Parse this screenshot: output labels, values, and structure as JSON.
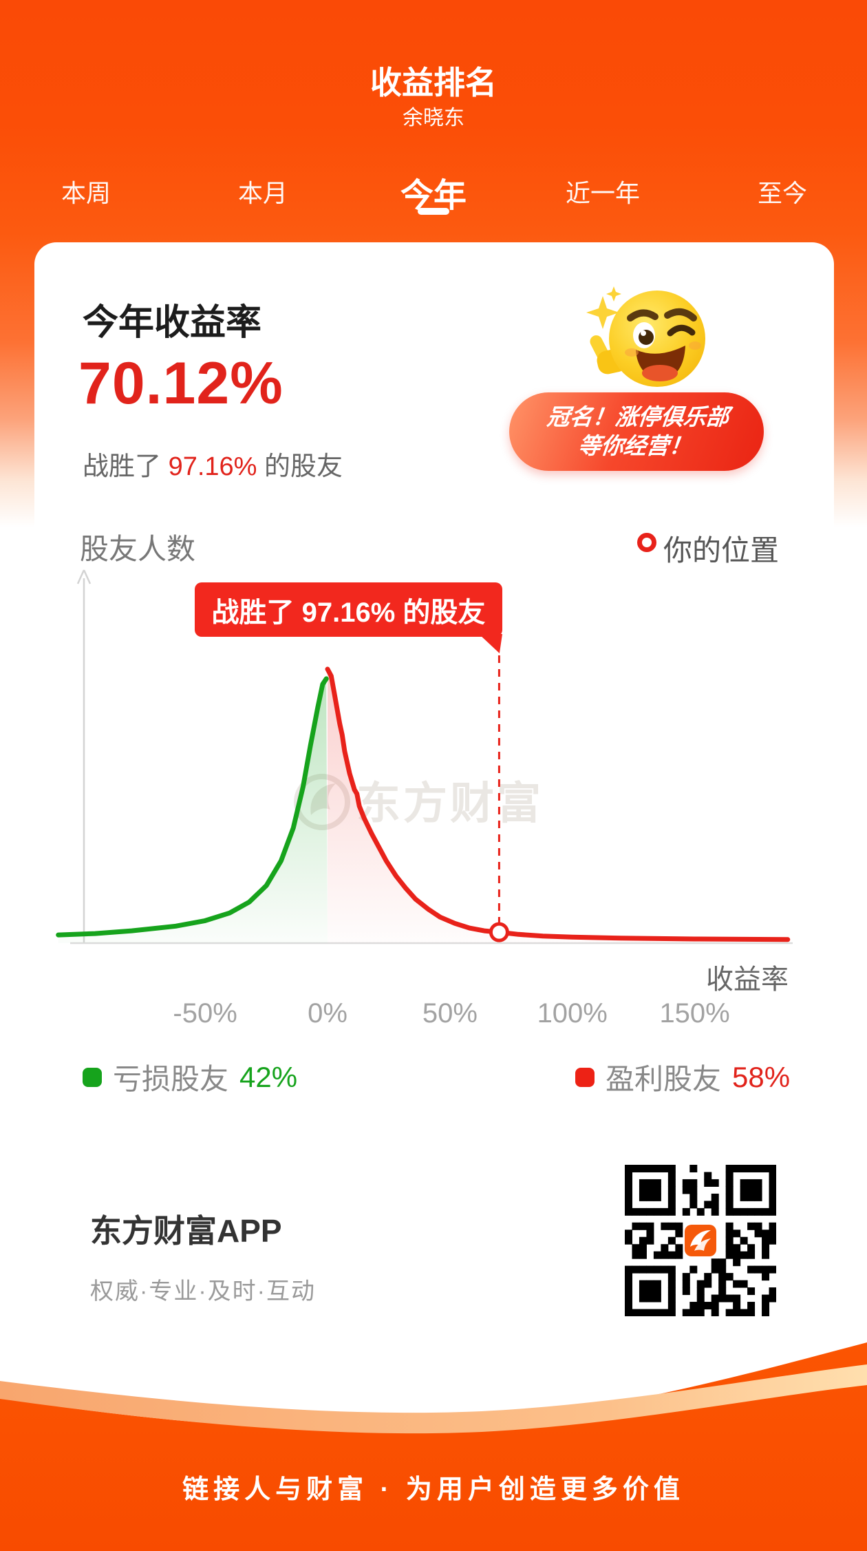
{
  "header": {
    "title": "收益排名",
    "user_name": "余晓东"
  },
  "tabs": [
    {
      "label": "本周",
      "active": false
    },
    {
      "label": "本月",
      "active": false
    },
    {
      "label": "今年",
      "active": true
    },
    {
      "label": "近一年",
      "active": false
    },
    {
      "label": "至今",
      "active": false
    }
  ],
  "card": {
    "rate_label": "今年收益率",
    "rate_value": "70.12%",
    "beat_prefix": "战胜了 ",
    "beat_percent": "97.16%",
    "beat_suffix": " 的股友",
    "badge_line1": "冠名！涨停俱乐部",
    "badge_line2": "等你经营！",
    "emoji_icon": "thumbs-up-wink-emoji",
    "sparkle_icon": "sparkle"
  },
  "chart": {
    "y_axis_label": "股友人数",
    "marker_legend": "你的位置",
    "tooltip_text": "战胜了 97.16% 的股友",
    "x_axis_label": "收益率",
    "watermark": "东方财富",
    "x_tick_labels": [
      "-50%",
      "0%",
      "50%",
      "100%",
      "150%"
    ],
    "legend_loss_label": "亏损股友",
    "legend_loss_value": "42%",
    "legend_profit_label": "盈利股友",
    "legend_profit_value": "58%"
  },
  "chart_data": {
    "type": "area",
    "title": "股友收益率分布",
    "xlabel": "收益率",
    "ylabel": "股友人数",
    "x_ticks_pct": [
      -50,
      0,
      50,
      100,
      150
    ],
    "x_range_pct": [
      -110,
      188
    ],
    "user_position_pct": 70.12,
    "user_point_v": 0.04,
    "beat_percent": 97.16,
    "loss_share_pct": 42,
    "profit_share_pct": 58,
    "legend_position": "bottom",
    "grid": false,
    "series": [
      {
        "name": "亏损股友",
        "color": "#16a31c",
        "points": [
          [
            -110,
            0.03
          ],
          [
            -95,
            0.035
          ],
          [
            -80,
            0.045
          ],
          [
            -62,
            0.062
          ],
          [
            -50,
            0.082
          ],
          [
            -40,
            0.11
          ],
          [
            -32,
            0.15
          ],
          [
            -25,
            0.21
          ],
          [
            -19,
            0.3
          ],
          [
            -14,
            0.42
          ],
          [
            -10,
            0.57
          ],
          [
            -7,
            0.72
          ],
          [
            -4,
            0.86
          ],
          [
            -2,
            0.945
          ],
          [
            -0.5,
            0.965
          ]
        ]
      },
      {
        "name": "盈利股友",
        "color": "#e8221a",
        "points": [
          [
            0,
            1.0
          ],
          [
            1.5,
            0.975
          ],
          [
            3,
            0.9
          ],
          [
            5,
            0.8
          ],
          [
            6,
            0.76
          ],
          [
            7,
            0.7
          ],
          [
            9,
            0.62
          ],
          [
            11,
            0.56
          ],
          [
            12,
            0.545
          ],
          [
            13,
            0.5
          ],
          [
            15,
            0.455
          ],
          [
            18,
            0.4
          ],
          [
            21,
            0.35
          ],
          [
            24,
            0.3
          ],
          [
            28,
            0.245
          ],
          [
            32,
            0.2
          ],
          [
            36,
            0.16
          ],
          [
            41,
            0.125
          ],
          [
            46,
            0.095
          ],
          [
            52,
            0.072
          ],
          [
            58,
            0.055
          ],
          [
            64,
            0.045
          ],
          [
            70.12,
            0.04
          ],
          [
            78,
            0.032
          ],
          [
            88,
            0.026
          ],
          [
            100,
            0.022
          ],
          [
            120,
            0.018
          ],
          [
            150,
            0.015
          ],
          [
            188,
            0.013
          ]
        ]
      }
    ],
    "colors": {
      "loss": "#16a31c",
      "profit": "#e8221a",
      "marker": "#e8221a"
    }
  },
  "app": {
    "name": "东方财富APP",
    "tagline": "权威·专业·及时·互动",
    "qr_icon": "qr-code"
  },
  "footer": {
    "slogan": "链接人与财富 · 为用户创造更多价值"
  },
  "colors": {
    "bg_top": "#fa4a06",
    "accent_red": "#e1231b",
    "tooltip_red": "#f2281e",
    "green": "#16a31c",
    "curve_red": "#e8221a",
    "footer_orange": "#f85102"
  }
}
